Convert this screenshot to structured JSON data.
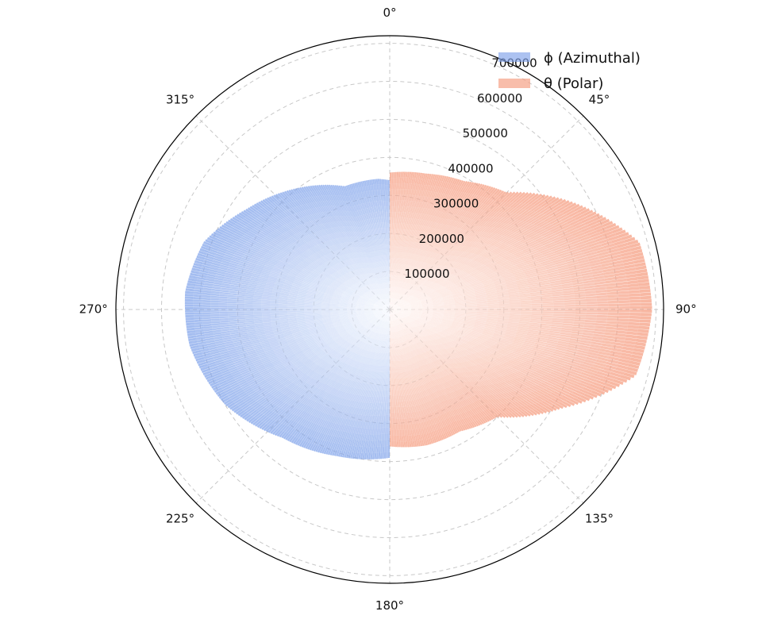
{
  "chart_data": {
    "type": "polar-bar",
    "title": "",
    "theta_zero": "top",
    "theta_direction": "clockwise",
    "angle_ticks": [
      0,
      45,
      90,
      135,
      180,
      225,
      270,
      315
    ],
    "angle_tick_labels": [
      "0°",
      "45°",
      "90°",
      "135°",
      "180°",
      "225°",
      "270°",
      "315°"
    ],
    "radial_ticks": [
      100000,
      200000,
      300000,
      400000,
      500000,
      600000,
      700000
    ],
    "radial_tick_labels": [
      "100000",
      "200000",
      "300000",
      "400000",
      "500000",
      "600000",
      "700000"
    ],
    "rlim": [
      0,
      720000
    ],
    "grid": true,
    "legend_position": "top-right",
    "series": [
      {
        "name": "ϕ (Azimuthal)",
        "color": "#7fa2ea",
        "angle_range": [
          180,
          360
        ],
        "profile_angles": [
          180,
          200,
          220,
          240,
          260,
          275,
          290,
          305,
          320,
          340,
          355,
          360
        ],
        "profile_values": [
          390000,
          410000,
          440000,
          500000,
          535000,
          540000,
          520000,
          460000,
          410000,
          345000,
          345000,
          340000
        ]
      },
      {
        "name": "θ (Polar)",
        "color": "#f59a7d",
        "angle_range": [
          0,
          180
        ],
        "profile_angles": [
          0,
          15,
          30,
          45,
          60,
          75,
          90,
          105,
          120,
          135,
          150,
          165,
          180
        ],
        "profile_values": [
          360000,
          370000,
          390000,
          435000,
          560000,
          680000,
          690000,
          670000,
          520000,
          400000,
          370000,
          370000,
          360000
        ]
      }
    ]
  }
}
